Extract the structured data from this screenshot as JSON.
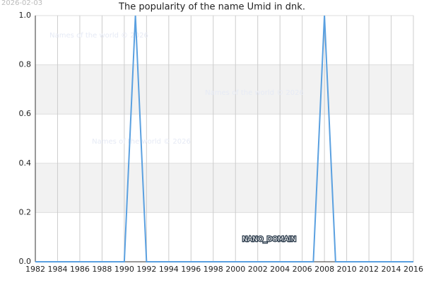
{
  "chart_data": {
    "type": "line",
    "title": "The popularity of the name Umid in dnk.",
    "date_stamp": "2026-02-03",
    "watermarks": [
      "Names of the world © 2026",
      "Names of the world © 2026",
      "Names of the world © 2026"
    ],
    "domain_label": "NANO_DOMAIN",
    "x": [
      1982,
      1983,
      1984,
      1985,
      1986,
      1987,
      1988,
      1989,
      1990,
      1991,
      1992,
      1993,
      1994,
      1995,
      1996,
      1997,
      1998,
      1999,
      2000,
      2001,
      2002,
      2003,
      2004,
      2005,
      2006,
      2007,
      2008,
      2009,
      2010,
      2011,
      2012,
      2013,
      2014,
      2015,
      2016
    ],
    "series": [
      {
        "color": "#5aa0e0",
        "values": [
          0,
          0,
          0,
          0,
          0,
          0,
          0,
          0,
          0,
          1,
          0,
          0,
          0,
          0,
          0,
          0,
          0,
          0,
          0,
          0,
          0,
          0,
          0,
          0,
          0,
          0,
          1,
          0,
          0,
          0,
          0,
          0,
          0,
          0,
          0
        ]
      }
    ],
    "xlim": [
      1982,
      2016
    ],
    "xticks": [
      1982,
      1984,
      1986,
      1988,
      1990,
      1992,
      1994,
      1996,
      1998,
      2000,
      2002,
      2004,
      2006,
      2008,
      2010,
      2012,
      2014,
      2016
    ],
    "ylim": [
      0,
      1
    ],
    "yticks": [
      {
        "value": 0,
        "label": "0.0"
      },
      0.2,
      0.4,
      0.6,
      0.8,
      {
        "value": 1,
        "label": "1.0"
      }
    ],
    "grid": true
  }
}
